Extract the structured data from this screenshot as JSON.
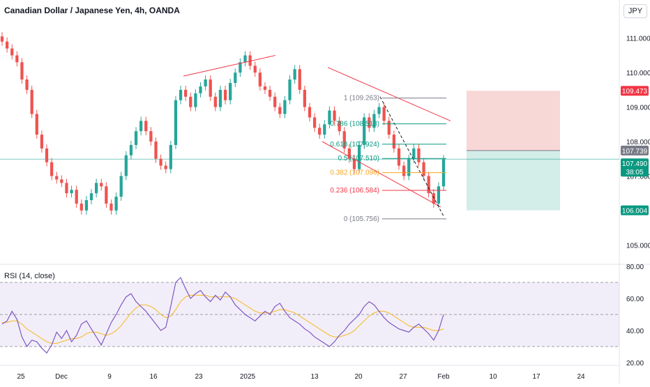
{
  "header": {
    "title": "Canadian Dollar / Japanese Yen, 4h, OANDA",
    "currency_button": "JPY"
  },
  "rsi_panel": {
    "label": "RSI (14, close)"
  },
  "colors": {
    "up": "#26a69a",
    "down": "#ef5350",
    "rsi_line": "#7e57c2",
    "rsi_ma": "#f5c13d",
    "fib_1": "#787b86",
    "fib_786": "#089981",
    "fib_382": "#f5a623",
    "fib_236": "#f23645",
    "stop_zone": "#f8d7d7",
    "target_zone": "#d3ede8"
  },
  "chart_data": [
    {
      "type": "candlestick",
      "title": "Canadian Dollar / Japanese Yen, 4h, OANDA",
      "ylim": [
        104.5,
        111.5
      ],
      "y_ticks": [
        "111.000",
        "110.000",
        "109.000",
        "108.000",
        "107.000",
        "105.000"
      ],
      "x_ticks": [
        "25",
        "Dec",
        "9",
        "16",
        "23",
        "2025",
        "13",
        "20",
        "27",
        "Feb",
        "10",
        "17",
        "24"
      ],
      "price_labels": [
        {
          "value": "109.473",
          "role": "stop"
        },
        {
          "value": "107.739",
          "role": "entry"
        },
        {
          "value": "107.490",
          "role": "last",
          "countdown": "38:05"
        },
        {
          "value": "106.004",
          "role": "target"
        }
      ],
      "fibonacci": [
        {
          "level": "1",
          "price": 109.263,
          "label": "1 (109.263)"
        },
        {
          "level": "0.786",
          "price": 108.513,
          "label": "0.786 (108.513)"
        },
        {
          "level": "0.618",
          "price": 107.924,
          "label": "0.618 (107.924)"
        },
        {
          "level": "0.5",
          "price": 107.51,
          "label": "0.5 (107.510)"
        },
        {
          "level": "0.382",
          "price": 107.096,
          "label": "0.382 (107.096)"
        },
        {
          "level": "0.236",
          "price": 106.584,
          "label": "0.236 (106.584)"
        },
        {
          "level": "0",
          "price": 105.756,
          "label": "0 (105.756)"
        }
      ],
      "position": {
        "stop": 109.473,
        "entry": 107.739,
        "target": 106.004
      },
      "series": [
        {
          "close": [
            110.9,
            110.7,
            110.5,
            110.3,
            109.8,
            109.5,
            108.8,
            108.2,
            107.8,
            107.4,
            107.0,
            106.9,
            106.8,
            106.5,
            106.6,
            106.2,
            106.0,
            106.3,
            106.5,
            106.8,
            106.7,
            106.2,
            106.0,
            106.4,
            107.0,
            107.6,
            107.9,
            108.3,
            108.6,
            108.3,
            108.0,
            107.5,
            107.3,
            107.2,
            107.9,
            109.2,
            109.5,
            109.3,
            109.0,
            109.4,
            109.6,
            109.8,
            109.3,
            109.0,
            109.5,
            109.2,
            109.7,
            110.0,
            110.3,
            110.5,
            110.2,
            110.0,
            109.6,
            109.5,
            109.3,
            109.0,
            108.8,
            109.2,
            109.8,
            110.1,
            109.5,
            109.0,
            108.7,
            108.4,
            108.2,
            108.5,
            108.9,
            108.6,
            108.3,
            107.8,
            107.5,
            107.2,
            107.9,
            108.7,
            108.4,
            108.8,
            109.0,
            108.6,
            108.2,
            107.8,
            107.3,
            107.0,
            107.5,
            107.8,
            107.4,
            107.0,
            106.5,
            106.2,
            106.7,
            107.49
          ]
        }
      ]
    },
    {
      "type": "line",
      "title": "RSI (14, close)",
      "ylim": [
        20,
        80
      ],
      "y_ticks": [
        "80.00",
        "60.00",
        "40.00",
        "20.00"
      ],
      "bands": [
        30,
        50,
        70
      ],
      "series": [
        {
          "values": [
            44,
            46,
            52,
            47,
            36,
            30,
            34,
            33,
            29,
            26,
            31,
            39,
            35,
            40,
            33,
            37,
            44,
            46,
            41,
            36,
            31,
            38,
            45,
            50,
            56,
            61,
            63,
            58,
            55,
            52,
            48,
            44,
            40,
            42,
            55,
            70,
            73,
            66,
            60,
            63,
            65,
            61,
            58,
            62,
            59,
            64,
            61,
            56,
            53,
            50,
            48,
            46,
            49,
            52,
            50,
            55,
            57,
            52,
            48,
            46,
            44,
            41,
            39,
            36,
            34,
            32,
            30,
            33,
            37,
            40,
            44,
            47,
            50,
            55,
            58,
            56,
            52,
            48,
            45,
            43,
            41,
            40,
            39,
            42,
            44,
            41,
            38,
            34,
            40,
            50
          ]
        },
        {
          "values": [
            45,
            45,
            46,
            46,
            44,
            41,
            39,
            37,
            35,
            33,
            32,
            32,
            33,
            34,
            35,
            35,
            36,
            38,
            39,
            39,
            38,
            37,
            38,
            40,
            43,
            47,
            51,
            54,
            56,
            56,
            55,
            53,
            50,
            48,
            49,
            53,
            58,
            61,
            62,
            62,
            62,
            62,
            61,
            61,
            61,
            61,
            61,
            60,
            58,
            56,
            54,
            52,
            51,
            51,
            51,
            52,
            53,
            53,
            52,
            51,
            49,
            47,
            45,
            43,
            41,
            39,
            37,
            36,
            36,
            37,
            38,
            40,
            43,
            46,
            49,
            51,
            52,
            52,
            51,
            49,
            47,
            45,
            43,
            42,
            42,
            42,
            41,
            40,
            40,
            41
          ]
        }
      ]
    }
  ]
}
